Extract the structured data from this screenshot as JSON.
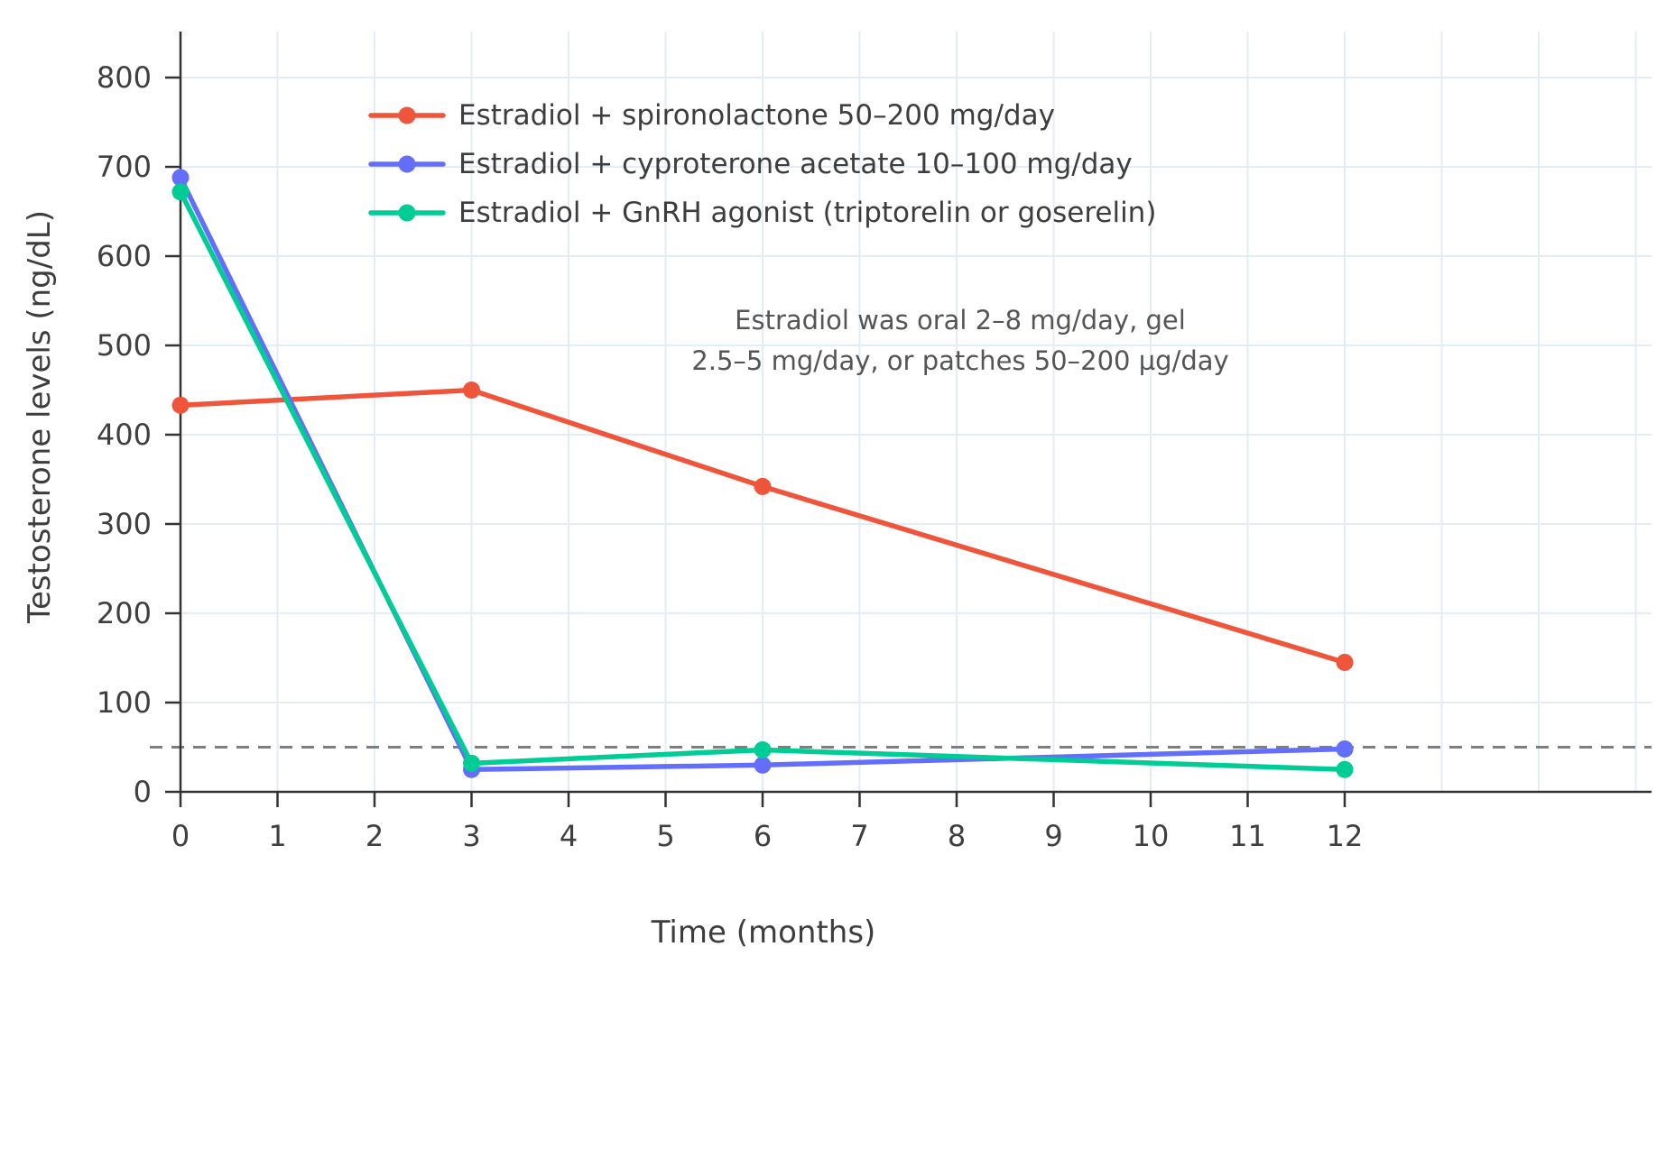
{
  "chart_data": {
    "type": "line",
    "title": "",
    "xlabel": "Time (months)",
    "ylabel": "Testosterone levels (ng/dL)",
    "x": [
      0,
      3,
      6,
      12
    ],
    "xticks": [
      0,
      1,
      2,
      3,
      4,
      5,
      6,
      7,
      8,
      9,
      10,
      11,
      12
    ],
    "yticks": [
      0,
      100,
      200,
      300,
      400,
      500,
      600,
      700,
      800
    ],
    "xlim": [
      0,
      15.2
    ],
    "ylim": [
      0,
      852
    ],
    "grid": true,
    "legend_position": "inside-top-left",
    "series": [
      {
        "name": "Estradiol + spironolactone 50–200 mg/day",
        "color": "#EF553B",
        "values": [
          433,
          450,
          342,
          145
        ]
      },
      {
        "name": "Estradiol + cyproterone acetate 10–100 mg/day",
        "color": "#636EFA",
        "values": [
          688,
          25,
          30,
          48
        ]
      },
      {
        "name": "Estradiol + GnRH agonist (triptorelin or goserelin)",
        "color": "#00CC96",
        "values": [
          672,
          32,
          47,
          25
        ]
      }
    ],
    "threshold_line": {
      "value": 50,
      "style": "dashed",
      "color": "#7f7f7f"
    },
    "annotation": {
      "line1": "Estradiol was oral 2–8 mg/day, gel",
      "line2": "2.5–5 mg/day, or patches 50–200 µg/day"
    },
    "colors": {
      "grid": "#e4ecf5",
      "axis": "#333333",
      "text": "#3f3f3f"
    }
  }
}
